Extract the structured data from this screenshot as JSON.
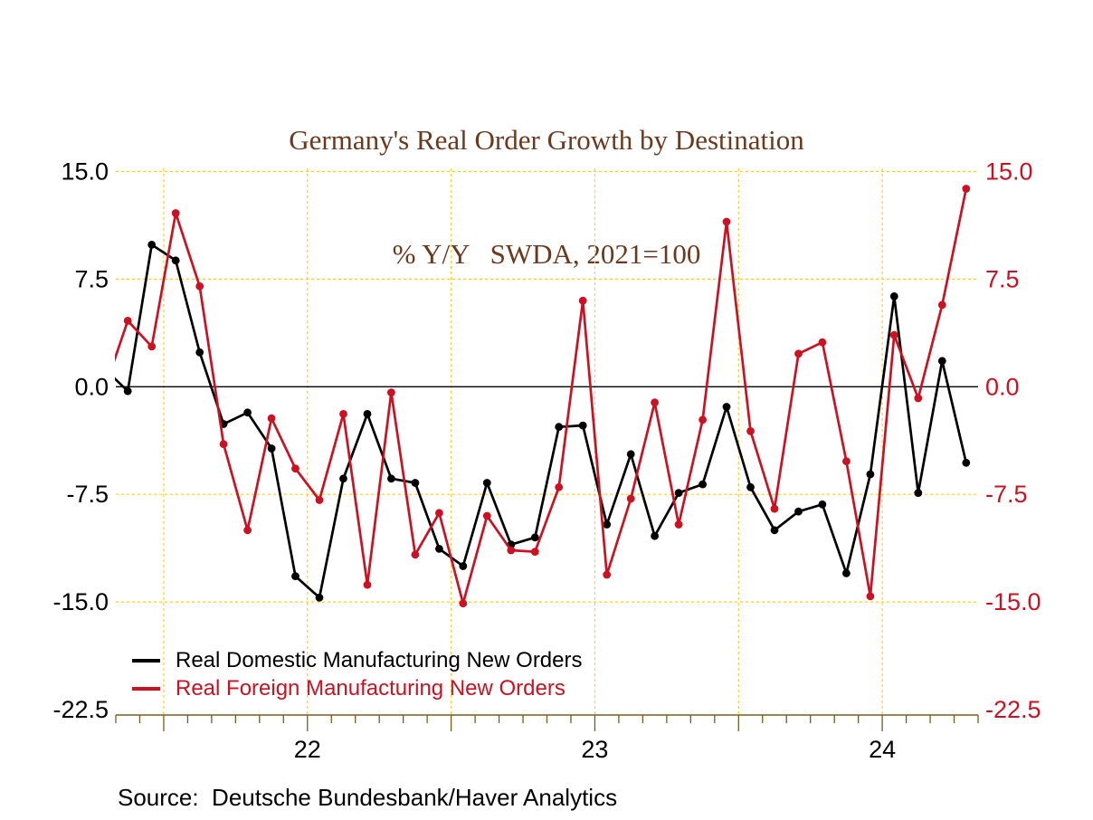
{
  "title": {
    "line1": "Germany's Real Order Growth by Destination",
    "line2": "% Y/Y   SWDA, 2021=100",
    "color": "#6B3A1E"
  },
  "source": {
    "text": "Source:  Deutsche Bundesbank/Haver Analytics"
  },
  "colors": {
    "domestic_black": "#000000",
    "foreign_red": "#CC1122",
    "gridline_yellow": "#FFCC33",
    "axis_brown": "#7A5B1E",
    "zero_line": "#000000",
    "right_axis_label": "#CC1122",
    "left_axis_label": "#000000"
  },
  "chart_data": {
    "type": "line",
    "title": "Germany's Real Order Growth by Destination",
    "subtitle": "% Y/Y   SWDA, 2021=100",
    "x": [
      "2021-05",
      "2021-06",
      "2021-07",
      "2021-08",
      "2021-09",
      "2021-10",
      "2021-11",
      "2021-12",
      "2022-01",
      "2022-02",
      "2022-03",
      "2022-04",
      "2022-05",
      "2022-06",
      "2022-07",
      "2022-08",
      "2022-09",
      "2022-10",
      "2022-11",
      "2022-12",
      "2023-01",
      "2023-02",
      "2023-03",
      "2023-04",
      "2023-05",
      "2023-06",
      "2023-07",
      "2023-08",
      "2023-09",
      "2023-10",
      "2023-11",
      "2023-12",
      "2024-01",
      "2024-02",
      "2024-03",
      "2024-04"
    ],
    "series": [
      {
        "name": "Real Domestic Manufacturing New Orders",
        "color": "#000000",
        "edge_lead_in": {
          "x": "2021-04",
          "value": 1.3
        },
        "values": [
          -0.3,
          9.9,
          8.8,
          2.4,
          -2.6,
          -1.8,
          -4.3,
          -13.2,
          -14.7,
          -6.4,
          -1.9,
          -6.4,
          -6.7,
          -11.3,
          -12.5,
          -6.7,
          -11.0,
          -10.5,
          -2.8,
          -2.7,
          -9.6,
          -4.7,
          -10.4,
          -7.4,
          -6.8,
          -1.4,
          -7.0,
          -10.0,
          -8.7,
          -8.2,
          -13.0,
          -6.1,
          6.3,
          -7.4,
          1.8,
          -5.3
        ]
      },
      {
        "name": "Real Foreign Manufacturing New Orders",
        "color": "#CC1122",
        "edge_lead_in": {
          "x": "2021-04",
          "value": -0.3
        },
        "values": [
          4.6,
          2.8,
          12.1,
          7.0,
          -4.0,
          -10.0,
          -2.2,
          -5.7,
          -7.9,
          -1.9,
          -13.8,
          -0.4,
          -11.7,
          -8.8,
          -15.1,
          -9.0,
          -11.4,
          -11.5,
          -7.0,
          6.0,
          -13.1,
          -7.8,
          -1.1,
          -9.6,
          -2.3,
          11.5,
          -3.1,
          -8.5,
          2.3,
          3.1,
          -5.2,
          -14.6,
          3.6,
          -0.8,
          5.7,
          13.8
        ]
      }
    ],
    "ylim": [
      -22.5,
      15.0
    ],
    "grid": true,
    "legend_position": "inside-bottom-left",
    "axis": {
      "y_ticks": [
        {
          "label": "15.0",
          "value": 15
        },
        {
          "label": "7.5",
          "value": 7.5
        },
        {
          "label": "0.0",
          "value": 0
        },
        {
          "label": "-7.5",
          "value": -7.5
        },
        {
          "label": "-15.0",
          "value": -15
        },
        {
          "label": "-22.5",
          "value": -22.5
        }
      ],
      "y_gridline_values": [
        15,
        7.5,
        -7.5,
        -15
      ],
      "zero_line_value": 0,
      "year_labels": [
        {
          "label": "22",
          "boundary_index": 8
        },
        {
          "label": "23",
          "boundary_index": 20
        },
        {
          "label": "24",
          "boundary_index": 32
        }
      ],
      "gridline_boundary_indices": [
        2,
        8,
        14,
        20,
        26,
        32
      ],
      "long_tick_boundary_indices": [
        2,
        8,
        14,
        20,
        26,
        32
      ]
    }
  }
}
